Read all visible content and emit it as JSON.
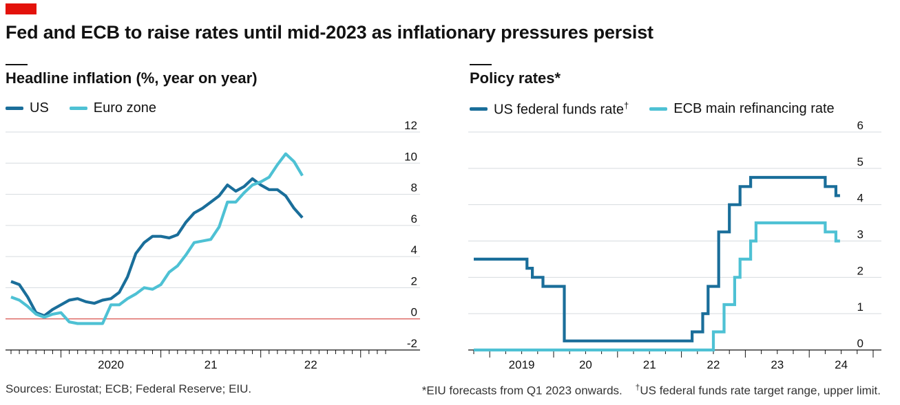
{
  "title": "Fed and ECB to raise rates until mid-2023 as inflationary pressures persist",
  "footer": {
    "sources": "Sources: Eurostat; ECB; Federal Reserve; EIU.",
    "note_forecast": "*EIU forecasts from Q1 2023 onwards.",
    "note_dagger_symbol": "†",
    "note_dagger": "US federal funds rate target range, upper limit."
  },
  "colors": {
    "us": "#1a6e9a",
    "euro": "#4ec1d4",
    "grid": "#d6dbdf",
    "zero_line": "#d8514b",
    "axis": "#121212",
    "tag": "#e3120b"
  },
  "chart_data": [
    {
      "type": "line",
      "title": "Headline inflation (%, year on year)",
      "ylim": [
        -2,
        12
      ],
      "yticks": [
        -2,
        0,
        2,
        4,
        6,
        8,
        10,
        12
      ],
      "y_tick_labels": [
        "-2",
        "0",
        "2",
        "4",
        "6",
        "8",
        "10",
        "12"
      ],
      "xlim": [
        "2019-07",
        "2023-04"
      ],
      "x_tick_labels": [
        {
          "label": "2020",
          "x": "2020-07"
        },
        {
          "label": "21",
          "x": "2021-07"
        },
        {
          "label": "22",
          "x": "2022-07"
        }
      ],
      "legend_position": "top-left",
      "grid": true,
      "series": [
        {
          "name": "US",
          "color": "#1a6e9a",
          "x": [
            "2019-07",
            "2019-08",
            "2019-09",
            "2019-10",
            "2019-11",
            "2019-12",
            "2020-01",
            "2020-02",
            "2020-03",
            "2020-04",
            "2020-05",
            "2020-06",
            "2020-07",
            "2020-08",
            "2020-09",
            "2020-10",
            "2020-11",
            "2020-12",
            "2021-01",
            "2021-02",
            "2021-03",
            "2021-04",
            "2021-05",
            "2021-06",
            "2021-07",
            "2021-08",
            "2021-09",
            "2021-10",
            "2021-11",
            "2021-12",
            "2022-01",
            "2022-02",
            "2022-03",
            "2022-04",
            "2022-05",
            "2022-06",
            "2022-07",
            "2022-08",
            "2022-09",
            "2022-10",
            "2022-11",
            "2022-12",
            "2023-01",
            "2023-02",
            "2023-03"
          ],
          "values": [
            2.4,
            2.2,
            1.4,
            0.4,
            0.2,
            0.6,
            0.9,
            1.2,
            1.3,
            1.1,
            1.0,
            1.2,
            1.3,
            1.7,
            2.7,
            4.2,
            4.9,
            5.3,
            5.3,
            5.2,
            5.4,
            6.2,
            6.8,
            7.1,
            7.5,
            7.9,
            8.6,
            8.2,
            8.5,
            9.0,
            8.6,
            8.3,
            8.3,
            7.9,
            7.1,
            6.5,
            null,
            null,
            null,
            null,
            null,
            null,
            null,
            null,
            null
          ]
        },
        {
          "name": "Euro zone",
          "color": "#4ec1d4",
          "x": [
            "2019-07",
            "2019-08",
            "2019-09",
            "2019-10",
            "2019-11",
            "2019-12",
            "2020-01",
            "2020-02",
            "2020-03",
            "2020-04",
            "2020-05",
            "2020-06",
            "2020-07",
            "2020-08",
            "2020-09",
            "2020-10",
            "2020-11",
            "2020-12",
            "2021-01",
            "2021-02",
            "2021-03",
            "2021-04",
            "2021-05",
            "2021-06",
            "2021-07",
            "2021-08",
            "2021-09",
            "2021-10",
            "2021-11",
            "2021-12",
            "2022-01",
            "2022-02",
            "2022-03",
            "2022-04",
            "2022-05",
            "2022-06",
            "2022-07",
            "2022-08",
            "2022-09",
            "2022-10",
            "2022-11",
            "2022-12",
            "2023-01",
            "2023-02",
            "2023-03"
          ],
          "values": [
            1.4,
            1.2,
            0.8,
            0.3,
            0.1,
            0.3,
            0.4,
            -0.2,
            -0.3,
            -0.3,
            -0.3,
            -0.3,
            0.9,
            0.9,
            1.3,
            1.6,
            2.0,
            1.9,
            2.2,
            3.0,
            3.4,
            4.1,
            4.9,
            5.0,
            5.1,
            5.9,
            7.5,
            7.5,
            8.1,
            8.6,
            8.8,
            9.1,
            9.9,
            10.6,
            10.1,
            9.2,
            null,
            null,
            null,
            null,
            null,
            null,
            null,
            null,
            null
          ]
        }
      ]
    },
    {
      "type": "line",
      "title": "Policy rates*",
      "ylim": [
        0,
        6
      ],
      "yticks": [
        0,
        1,
        2,
        3,
        4,
        5,
        6
      ],
      "y_tick_labels": [
        "0",
        "1",
        "2",
        "3",
        "4",
        "5",
        "6"
      ],
      "xlim": [
        "2018-10",
        "2025-01"
      ],
      "x_tick_labels": [
        {
          "label": "2019",
          "x": "2019-07"
        },
        {
          "label": "20",
          "x": "2020-07"
        },
        {
          "label": "21",
          "x": "2021-07"
        },
        {
          "label": "22",
          "x": "2022-07"
        },
        {
          "label": "23",
          "x": "2023-07"
        },
        {
          "label": "24",
          "x": "2024-07"
        }
      ],
      "legend_position": "top-left",
      "grid": true,
      "step": true,
      "series": [
        {
          "name": "US federal funds rate",
          "name_suffix": "†",
          "color": "#1a6e9a",
          "x": [
            "2018-10",
            "2019-08",
            "2019-09",
            "2019-11",
            "2020-03",
            "2022-03",
            "2022-05",
            "2022-06",
            "2022-08",
            "2022-10",
            "2022-12",
            "2023-02",
            "2024-04",
            "2024-06"
          ],
          "values": [
            2.5,
            2.25,
            2.0,
            1.75,
            0.25,
            0.5,
            1.0,
            1.75,
            3.25,
            4.0,
            4.5,
            4.75,
            4.5,
            4.25
          ]
        },
        {
          "name": "ECB main refinancing rate",
          "color": "#4ec1d4",
          "x": [
            "2018-10",
            "2022-07",
            "2022-09",
            "2022-11",
            "2022-12",
            "2023-02",
            "2023-03",
            "2024-04",
            "2024-06"
          ],
          "values": [
            0.0,
            0.5,
            1.25,
            2.0,
            2.5,
            3.0,
            3.5,
            3.25,
            3.0
          ]
        }
      ]
    }
  ]
}
